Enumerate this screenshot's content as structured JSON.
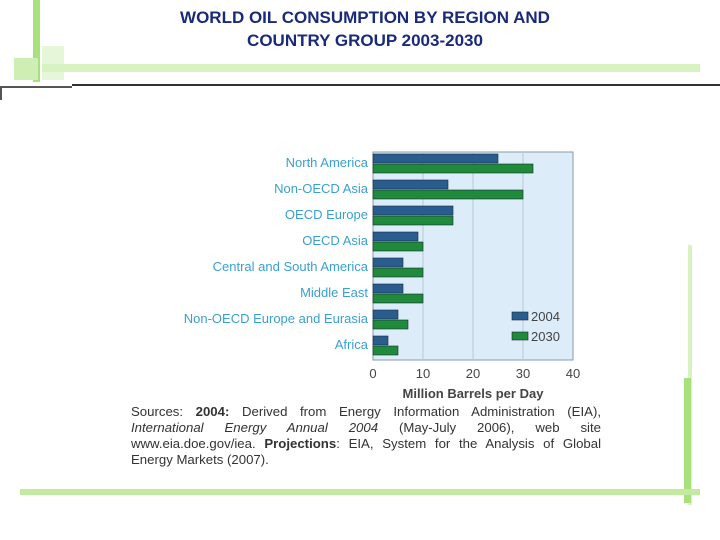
{
  "slide": {
    "title_line1": "WORLD OIL CONSUMPTION BY REGION AND",
    "title_line2": "COUNTRY GROUP 2003-2030"
  },
  "chart_data": {
    "type": "bar",
    "orientation": "horizontal",
    "categories": [
      "North America",
      "Non-OECD Asia",
      "OECD Europe",
      "OECD Asia",
      "Central and South America",
      "Middle East",
      "Non-OECD Europe and Eurasia",
      "Africa"
    ],
    "series": [
      {
        "name": "2004",
        "values": [
          25,
          15,
          16,
          9,
          6,
          6,
          5,
          3
        ],
        "color": "#2a5d8f"
      },
      {
        "name": "2030",
        "values": [
          32,
          30,
          16,
          10,
          10,
          10,
          7,
          5
        ],
        "color": "#1f8a3a"
      }
    ],
    "xlabel": "Million Barrels per Day",
    "xlim": [
      0,
      40
    ],
    "xticks": [
      0,
      10,
      20,
      30,
      40
    ],
    "legend_position": "bottom-right",
    "plot_background": "#dcecf8"
  },
  "sources": {
    "label": "Sources:",
    "y2004_label": "2004:",
    "text1": "Derived from Energy Information Administration (EIA),",
    "publication": "International Energy Annual 2004",
    "text2": "(May-July 2006), web site www.eia.doe.gov/iea.",
    "projections_label": "Projections",
    "text3": ": EIA, System for the Analysis of Global Energy Markets (2007)."
  },
  "colors": {
    "title": "#1a2a7a",
    "category_label": "#3aa0d0",
    "decor_green": "#a8e07a"
  }
}
